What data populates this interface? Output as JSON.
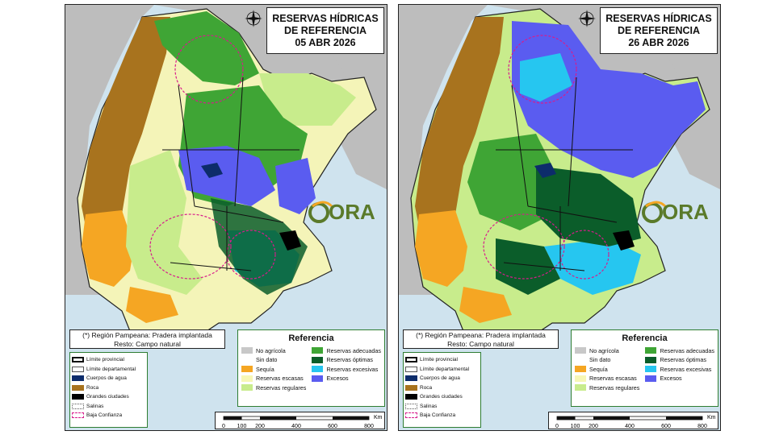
{
  "panels": [
    {
      "title_lines": [
        "RESERVAS HÍDRICAS",
        "DE REFERENCIA",
        "05 ABR 2026"
      ],
      "note_lines": [
        "(*) Región Pampeana: Pradera implantada",
        "Resto: Campo natural"
      ],
      "legend_title": "Referencia",
      "logo_text": "ORA"
    },
    {
      "title_lines": [
        "RESERVAS HÍDRICAS",
        "DE REFERENCIA",
        "26 ABR 2026"
      ],
      "note_lines": [
        "(*) Región Pampeana: Pradera implantada",
        "Resto: Campo natural"
      ],
      "legend_title": "Referencia",
      "logo_text": "ORA"
    }
  ],
  "layers_legend": [
    {
      "label": "Límite provincial",
      "symbol": "thick-border"
    },
    {
      "label": "Límite departamental",
      "symbol": "thin-border"
    },
    {
      "label": "Cuerpos de agua",
      "color": "#0d2c6b"
    },
    {
      "label": "Roca",
      "color": "#a8731e"
    },
    {
      "label": "Grandes ciudades",
      "color": "#000000"
    },
    {
      "label": "Salinas",
      "symbol": "dotted"
    },
    {
      "label": "Baja Confianza",
      "symbol": "dashed-magenta"
    }
  ],
  "categories": [
    {
      "label": "No agrícola",
      "color": "#c8c8c8"
    },
    {
      "label": "Reservas adecuadas",
      "color": "#3fa535"
    },
    {
      "label": "Sin dato",
      "color": "#ffffff"
    },
    {
      "label": "Reservas óptimas",
      "color": "#0b5d2a"
    },
    {
      "label": "Sequía",
      "color": "#f5a623"
    },
    {
      "label": "Reservas excesivas",
      "color": "#26c6f0"
    },
    {
      "label": "Reservas escasas",
      "color": "#f7f7b5"
    },
    {
      "label": "Excesos",
      "color": "#5a5cf0"
    },
    {
      "label": "Reservas regulares",
      "color": "#c8ec8c"
    }
  ],
  "scale": {
    "unit": "Km",
    "ticks": [
      "0",
      "100",
      "200",
      "400",
      "600",
      "800"
    ]
  }
}
